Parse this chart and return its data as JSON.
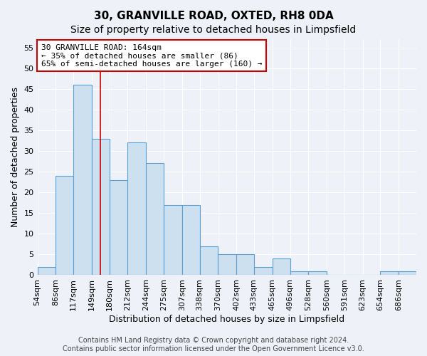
{
  "title1": "30, GRANVILLE ROAD, OXTED, RH8 0DA",
  "title2": "Size of property relative to detached houses in Limpsfield",
  "xlabel": "Distribution of detached houses by size in Limpsfield",
  "ylabel": "Number of detached properties",
  "bin_edges": [
    54,
    86,
    117,
    149,
    180,
    212,
    244,
    275,
    307,
    338,
    370,
    402,
    433,
    465,
    496,
    528,
    560,
    591,
    623,
    654,
    686,
    717
  ],
  "counts": [
    2,
    24,
    46,
    33,
    23,
    32,
    27,
    17,
    17,
    7,
    5,
    5,
    2,
    4,
    1,
    1,
    0,
    0,
    0,
    1,
    1
  ],
  "bar_color": "#cce0f0",
  "bar_edge_color": "#5a9fd4",
  "ref_line_x": 164,
  "ref_line_color": "#cc0000",
  "annotation_text": "30 GRANVILLE ROAD: 164sqm\n← 35% of detached houses are smaller (86)\n65% of semi-detached houses are larger (160) →",
  "annotation_box_color": "#ffffff",
  "annotation_box_edge": "#cc0000",
  "ylim": [
    0,
    57
  ],
  "yticks": [
    0,
    5,
    10,
    15,
    20,
    25,
    30,
    35,
    40,
    45,
    50,
    55
  ],
  "xtick_labels": [
    "54sqm",
    "86sqm",
    "117sqm",
    "149sqm",
    "180sqm",
    "212sqm",
    "244sqm",
    "275sqm",
    "307sqm",
    "338sqm",
    "370sqm",
    "402sqm",
    "433sqm",
    "465sqm",
    "496sqm",
    "528sqm",
    "560sqm",
    "591sqm",
    "623sqm",
    "654sqm",
    "686sqm"
  ],
  "background_color": "#eef2f8",
  "grid_color": "#ffffff",
  "footer1": "Contains HM Land Registry data © Crown copyright and database right 2024.",
  "footer2": "Contains public sector information licensed under the Open Government Licence v3.0.",
  "title1_fontsize": 11,
  "title2_fontsize": 10,
  "xlabel_fontsize": 9,
  "ylabel_fontsize": 9,
  "tick_fontsize": 8,
  "footer_fontsize": 7
}
